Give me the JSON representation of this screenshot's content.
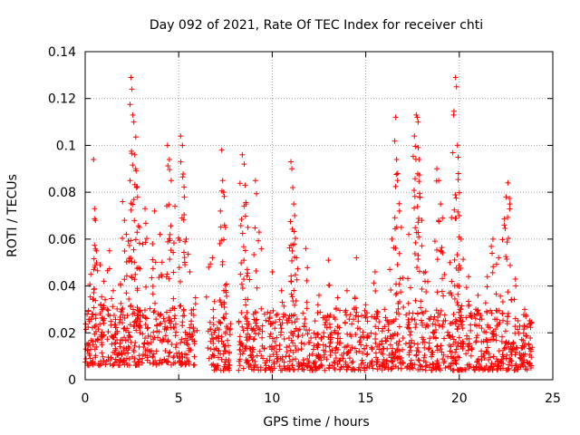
{
  "chart_data": {
    "type": "scatter",
    "title": "Day 092 of 2021, Rate Of TEC Index for receiver chti",
    "xlabel": "GPS time / hours",
    "ylabel": "ROTI / TECUs",
    "xlim": [
      0,
      25
    ],
    "ylim": [
      0,
      0.14
    ],
    "x_ticks": [
      0,
      5,
      10,
      15,
      20,
      25
    ],
    "y_ticks": [
      0,
      0.02,
      0.04,
      0.06,
      0.08,
      0.1,
      0.12,
      0.14
    ],
    "x_tick_labels": [
      "0",
      "5",
      "10",
      "15",
      "20",
      "25"
    ],
    "y_tick_labels": [
      "0",
      "0.02",
      "0.04",
      "0.06",
      "0.08",
      "0.1",
      "0.12",
      "0.14"
    ],
    "grid": true,
    "marker": "+",
    "color": "#ff0000",
    "series": [
      {
        "name": "ROTI",
        "points": [
          [
            0.1,
            0.028
          ],
          [
            0.3,
            0.045
          ],
          [
            0.45,
            0.094
          ],
          [
            0.5,
            0.073
          ],
          [
            0.55,
            0.068
          ],
          [
            0.6,
            0.055
          ],
          [
            0.8,
            0.049
          ],
          [
            1.0,
            0.042
          ],
          [
            1.3,
            0.055
          ],
          [
            1.5,
            0.038
          ],
          [
            2.0,
            0.076
          ],
          [
            2.1,
            0.068
          ],
          [
            2.2,
            0.062
          ],
          [
            2.4,
            0.085
          ],
          [
            2.45,
            0.129
          ],
          [
            2.5,
            0.124
          ],
          [
            2.55,
            0.113
          ],
          [
            2.6,
            0.11
          ],
          [
            2.65,
            0.096
          ],
          [
            2.7,
            0.09
          ],
          [
            2.75,
            0.082
          ],
          [
            2.8,
            0.078
          ],
          [
            2.9,
            0.065
          ],
          [
            3.2,
            0.073
          ],
          [
            3.6,
            0.058
          ],
          [
            3.7,
            0.072
          ],
          [
            4.0,
            0.062
          ],
          [
            4.4,
            0.1
          ],
          [
            4.5,
            0.094
          ],
          [
            4.6,
            0.085
          ],
          [
            4.8,
            0.074
          ],
          [
            5.1,
            0.104
          ],
          [
            5.2,
            0.1
          ],
          [
            5.3,
            0.078
          ],
          [
            5.4,
            0.06
          ],
          [
            5.6,
            0.046
          ],
          [
            5.9,
            0.035
          ],
          [
            6.6,
            0.048
          ],
          [
            6.8,
            0.052
          ],
          [
            7.2,
            0.034
          ],
          [
            7.3,
            0.098
          ],
          [
            7.35,
            0.085
          ],
          [
            7.4,
            0.08
          ],
          [
            7.45,
            0.066
          ],
          [
            7.5,
            0.065
          ],
          [
            8.3,
            0.045
          ],
          [
            8.4,
            0.096
          ],
          [
            8.5,
            0.092
          ],
          [
            8.55,
            0.083
          ],
          [
            8.6,
            0.075
          ],
          [
            8.7,
            0.065
          ],
          [
            9.1,
            0.085
          ],
          [
            9.3,
            0.063
          ],
          [
            10.0,
            0.046
          ],
          [
            10.5,
            0.038
          ],
          [
            11.0,
            0.093
          ],
          [
            11.05,
            0.09
          ],
          [
            11.1,
            0.082
          ],
          [
            11.15,
            0.075
          ],
          [
            11.2,
            0.07
          ],
          [
            11.3,
            0.052
          ],
          [
            11.8,
            0.056
          ],
          [
            12.5,
            0.036
          ],
          [
            13.0,
            0.051
          ],
          [
            13.5,
            0.035
          ],
          [
            14.0,
            0.038
          ],
          [
            14.5,
            0.052
          ],
          [
            15.0,
            0.032
          ],
          [
            15.5,
            0.046
          ],
          [
            16.0,
            0.03
          ],
          [
            16.4,
            0.06
          ],
          [
            16.6,
            0.112
          ],
          [
            16.65,
            0.094
          ],
          [
            16.7,
            0.088
          ],
          [
            16.8,
            0.072
          ],
          [
            16.9,
            0.065
          ],
          [
            17.3,
            0.062
          ],
          [
            17.6,
            0.104
          ],
          [
            17.7,
            0.113
          ],
          [
            17.75,
            0.112
          ],
          [
            17.8,
            0.11
          ],
          [
            17.85,
            0.094
          ],
          [
            17.9,
            0.078
          ],
          [
            18.0,
            0.068
          ],
          [
            18.2,
            0.046
          ],
          [
            18.8,
            0.09
          ],
          [
            18.9,
            0.085
          ],
          [
            19.0,
            0.075
          ],
          [
            19.1,
            0.069
          ],
          [
            19.5,
            0.05
          ],
          [
            19.7,
            0.113
          ],
          [
            19.8,
            0.129
          ],
          [
            19.85,
            0.125
          ],
          [
            19.9,
            0.1
          ],
          [
            19.95,
            0.088
          ],
          [
            20.0,
            0.07
          ],
          [
            20.1,
            0.06
          ],
          [
            20.5,
            0.044
          ],
          [
            21.0,
            0.036
          ],
          [
            21.5,
            0.044
          ],
          [
            21.8,
            0.06
          ],
          [
            22.1,
            0.052
          ],
          [
            22.4,
            0.066
          ],
          [
            22.5,
            0.078
          ],
          [
            22.6,
            0.084
          ],
          [
            22.7,
            0.075
          ],
          [
            23.0,
            0.043
          ],
          [
            23.5,
            0.03
          ],
          [
            23.8,
            0.024
          ]
        ],
        "baseline_segments": [
          [
            0.0,
            5.9,
            0.006,
            0.022
          ],
          [
            6.6,
            7.8,
            0.004,
            0.018
          ],
          [
            8.2,
            23.9,
            0.004,
            0.02
          ]
        ]
      }
    ]
  }
}
